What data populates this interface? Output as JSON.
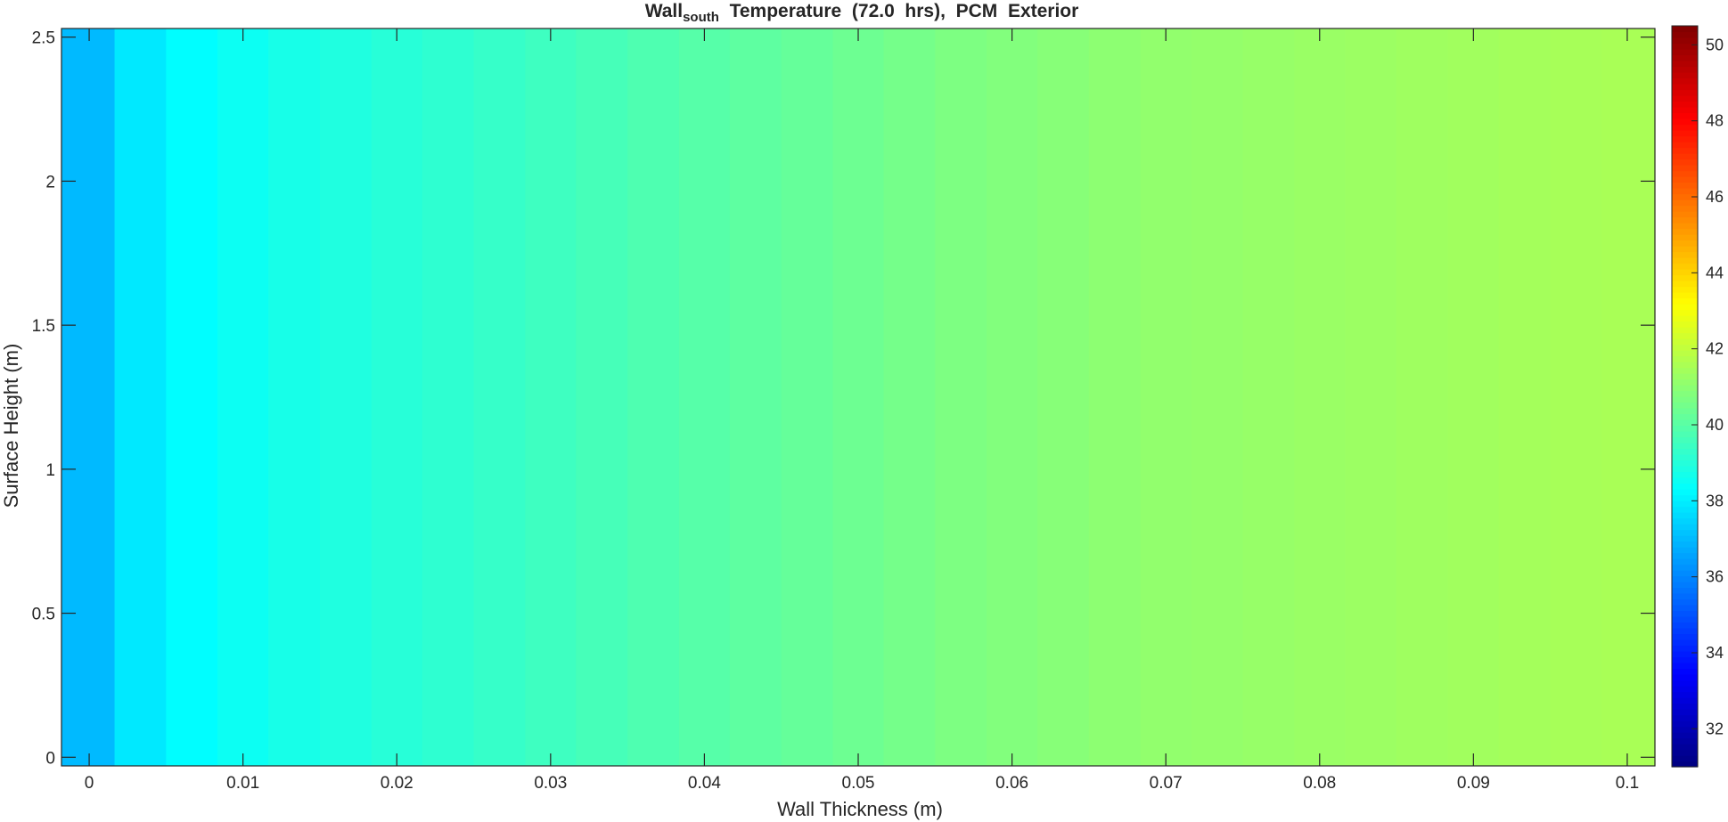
{
  "chart_data": {
    "type": "heatmap",
    "title_main": "Wall",
    "title_sub": "south",
    "title_rest": "  Temperature  (72.0  hrs),  PCM  Exterior",
    "xlabel": "Wall Thickness (m)",
    "ylabel": "Surface Height (m)",
    "xlim": [
      -0.0018,
      0.1018
    ],
    "ylim": [
      -0.03,
      2.53
    ],
    "xticks": [
      "0",
      "0.01",
      "0.02",
      "0.03",
      "0.04",
      "0.05",
      "0.06",
      "0.07",
      "0.08",
      "0.09",
      "0.1"
    ],
    "yticks": [
      "0",
      "0.5",
      "1",
      "1.5",
      "2",
      "2.5"
    ],
    "colorbar": {
      "range": [
        31,
        50.5
      ],
      "colormap": "jet",
      "ticks": [
        "32",
        "34",
        "36",
        "38",
        "40",
        "42",
        "44",
        "46",
        "48",
        "50"
      ]
    },
    "x_nodes": [
      0,
      0.0033,
      0.0067,
      0.01,
      0.0133,
      0.0167,
      0.02,
      0.0233,
      0.0267,
      0.03,
      0.0333,
      0.0367,
      0.04,
      0.0433,
      0.0467,
      0.05,
      0.0533,
      0.0567,
      0.06,
      0.0633,
      0.0667,
      0.07,
      0.0733,
      0.0767,
      0.08,
      0.0833,
      0.0867,
      0.09,
      0.0933,
      0.0967,
      0.1
    ],
    "temperatures": [
      37.0,
      37.9,
      38.3,
      38.55,
      38.75,
      38.9,
      39.05,
      39.2,
      39.35,
      39.5,
      39.65,
      39.8,
      39.95,
      40.1,
      40.25,
      40.4,
      40.55,
      40.7,
      40.8,
      40.9,
      41.0,
      41.1,
      41.15,
      41.2,
      41.25,
      41.3,
      41.35,
      41.4,
      41.45,
      41.5,
      41.55
    ]
  }
}
